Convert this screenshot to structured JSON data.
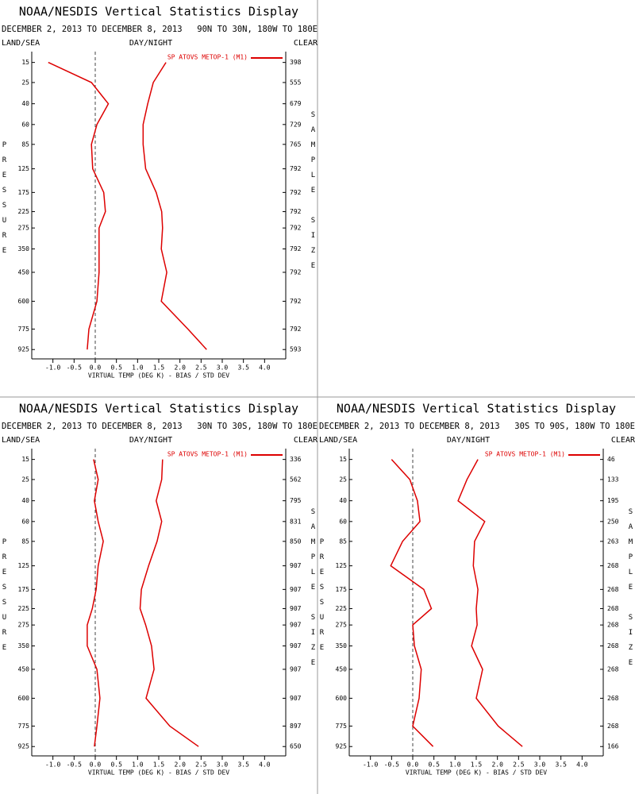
{
  "chart_data": [
    {
      "type": "line",
      "title": "NOAA/NESDIS Vertical Statistics Display",
      "date_range": "DECEMBER 2, 2013 TO DECEMBER 8, 2013",
      "region": "90N TO 30N, 180W TO 180E",
      "left_header": "LAND/SEA",
      "center_header": "DAY/NIGHT",
      "right_header": "CLEAR",
      "y_label": "PRESSURE",
      "y2_label": "SAMPLE SIZE",
      "x_label": "VIRTUAL TEMP (DEG K) - BIAS / STD DEV",
      "y_scale_power": 0.286,
      "ylim": [
        1000,
        11
      ],
      "levels": [
        15,
        25,
        40,
        60,
        85,
        125,
        175,
        225,
        275,
        350,
        450,
        600,
        775,
        925
      ],
      "sample_size": [
        398,
        555,
        679,
        729,
        765,
        792,
        792,
        792,
        792,
        792,
        792,
        792,
        792,
        593
      ],
      "xlim": [
        -1.5,
        4.5
      ],
      "xticks": [
        {
          "value": -1,
          "label": "-1.0"
        },
        {
          "value": -0.5,
          "label": "-0.5"
        },
        {
          "value": 0,
          "label": "0.0"
        },
        0.5,
        {
          "value": 1,
          "label": "1.0"
        },
        1.5,
        {
          "value": 2,
          "label": "2.0"
        },
        2.5,
        {
          "value": 3,
          "label": "3.0"
        },
        3.5,
        {
          "value": 4,
          "label": "4.0"
        }
      ],
      "series": [
        {
          "name": "SP ATOVS METOP-1 (M1)",
          "color": "#dd0000",
          "bias": [
            -1.11,
            -0.09,
            0.31,
            0.04,
            -0.09,
            -0.06,
            0.2,
            0.24,
            0.09,
            0.09,
            0.09,
            0.04,
            -0.15,
            -0.19
          ],
          "std_dev": [
            1.67,
            1.37,
            1.24,
            1.13,
            1.13,
            1.19,
            1.44,
            1.57,
            1.59,
            1.56,
            1.69,
            1.56,
            2.19,
            2.63
          ]
        }
      ]
    },
    {
      "type": "line",
      "title": "NOAA/NESDIS Vertical Statistics Display",
      "date_range": "DECEMBER 2, 2013 TO DECEMBER 8, 2013",
      "region": "30N TO 30S, 180W TO 180E",
      "left_header": "LAND/SEA",
      "center_header": "DAY/NIGHT",
      "right_header": "CLEAR",
      "y_label": "PRESSURE",
      "y2_label": "SAMPLE SIZE",
      "x_label": "VIRTUAL TEMP (DEG K) - BIAS / STD DEV",
      "y_scale_power": 0.286,
      "ylim": [
        1000,
        11
      ],
      "levels": [
        15,
        25,
        40,
        60,
        85,
        125,
        175,
        225,
        275,
        350,
        450,
        600,
        775,
        925
      ],
      "sample_size": [
        336,
        562,
        795,
        831,
        850,
        907,
        907,
        907,
        907,
        907,
        907,
        907,
        897,
        650
      ],
      "xlim": [
        -1.5,
        4.5
      ],
      "xticks": [
        {
          "value": -1,
          "label": "-1.0"
        },
        {
          "value": -0.5,
          "label": "-0.5"
        },
        {
          "value": 0,
          "label": "0.0"
        },
        0.5,
        {
          "value": 1,
          "label": "1.0"
        },
        1.5,
        {
          "value": 2,
          "label": "2.0"
        },
        2.5,
        {
          "value": 3,
          "label": "3.0"
        },
        3.5,
        {
          "value": 4,
          "label": "4.0"
        }
      ],
      "series": [
        {
          "name": "SP ATOVS METOP-1 (M1)",
          "color": "#dd0000",
          "bias": [
            -0.04,
            0.07,
            -0.02,
            0.07,
            0.19,
            0.07,
            0.02,
            -0.07,
            -0.19,
            -0.19,
            0.04,
            0.11,
            0.04,
            -0.02
          ],
          "std_dev": [
            1.59,
            1.57,
            1.44,
            1.57,
            1.46,
            1.26,
            1.09,
            1.06,
            1.19,
            1.33,
            1.39,
            1.2,
            1.76,
            2.44
          ]
        }
      ]
    },
    {
      "type": "line",
      "title": "NOAA/NESDIS Vertical Statistics Display",
      "date_range": "DECEMBER 2, 2013 TO DECEMBER 8, 2013",
      "region": "30S TO 90S, 180W TO 180E",
      "left_header": "LAND/SEA",
      "center_header": "DAY/NIGHT",
      "right_header": "CLEAR",
      "y_label": "PRESSURE",
      "y2_label": "SAMPLE SIZE",
      "x_label": "VIRTUAL TEMP (DEG K) - BIAS / STD DEV",
      "y_scale_power": 0.286,
      "ylim": [
        1000,
        11
      ],
      "levels": [
        15,
        25,
        40,
        60,
        85,
        125,
        175,
        225,
        275,
        350,
        450,
        600,
        775,
        925
      ],
      "sample_size": [
        46,
        133,
        195,
        250,
        263,
        268,
        268,
        268,
        268,
        268,
        268,
        268,
        268,
        166
      ],
      "xlim": [
        -1.5,
        4.5
      ],
      "xticks": [
        {
          "value": -1,
          "label": "-1.0"
        },
        {
          "value": -0.5,
          "label": "-0.5"
        },
        {
          "value": 0,
          "label": "0.0"
        },
        0.5,
        {
          "value": 1,
          "label": "1.0"
        },
        1.5,
        {
          "value": 2,
          "label": "2.0"
        },
        2.5,
        {
          "value": 3,
          "label": "3.0"
        },
        3.5,
        {
          "value": 4,
          "label": "4.0"
        }
      ],
      "series": [
        {
          "name": "SP ATOVS METOP-1 (M1)",
          "color": "#dd0000",
          "bias": [
            -0.5,
            -0.07,
            0.11,
            0.17,
            -0.24,
            -0.52,
            0.26,
            0.44,
            0,
            0.04,
            0.2,
            0.15,
            0,
            0.48
          ],
          "std_dev": [
            1.54,
            1.28,
            1.07,
            1.7,
            1.46,
            1.43,
            1.54,
            1.5,
            1.52,
            1.39,
            1.65,
            1.5,
            2.02,
            2.59
          ]
        }
      ]
    }
  ]
}
